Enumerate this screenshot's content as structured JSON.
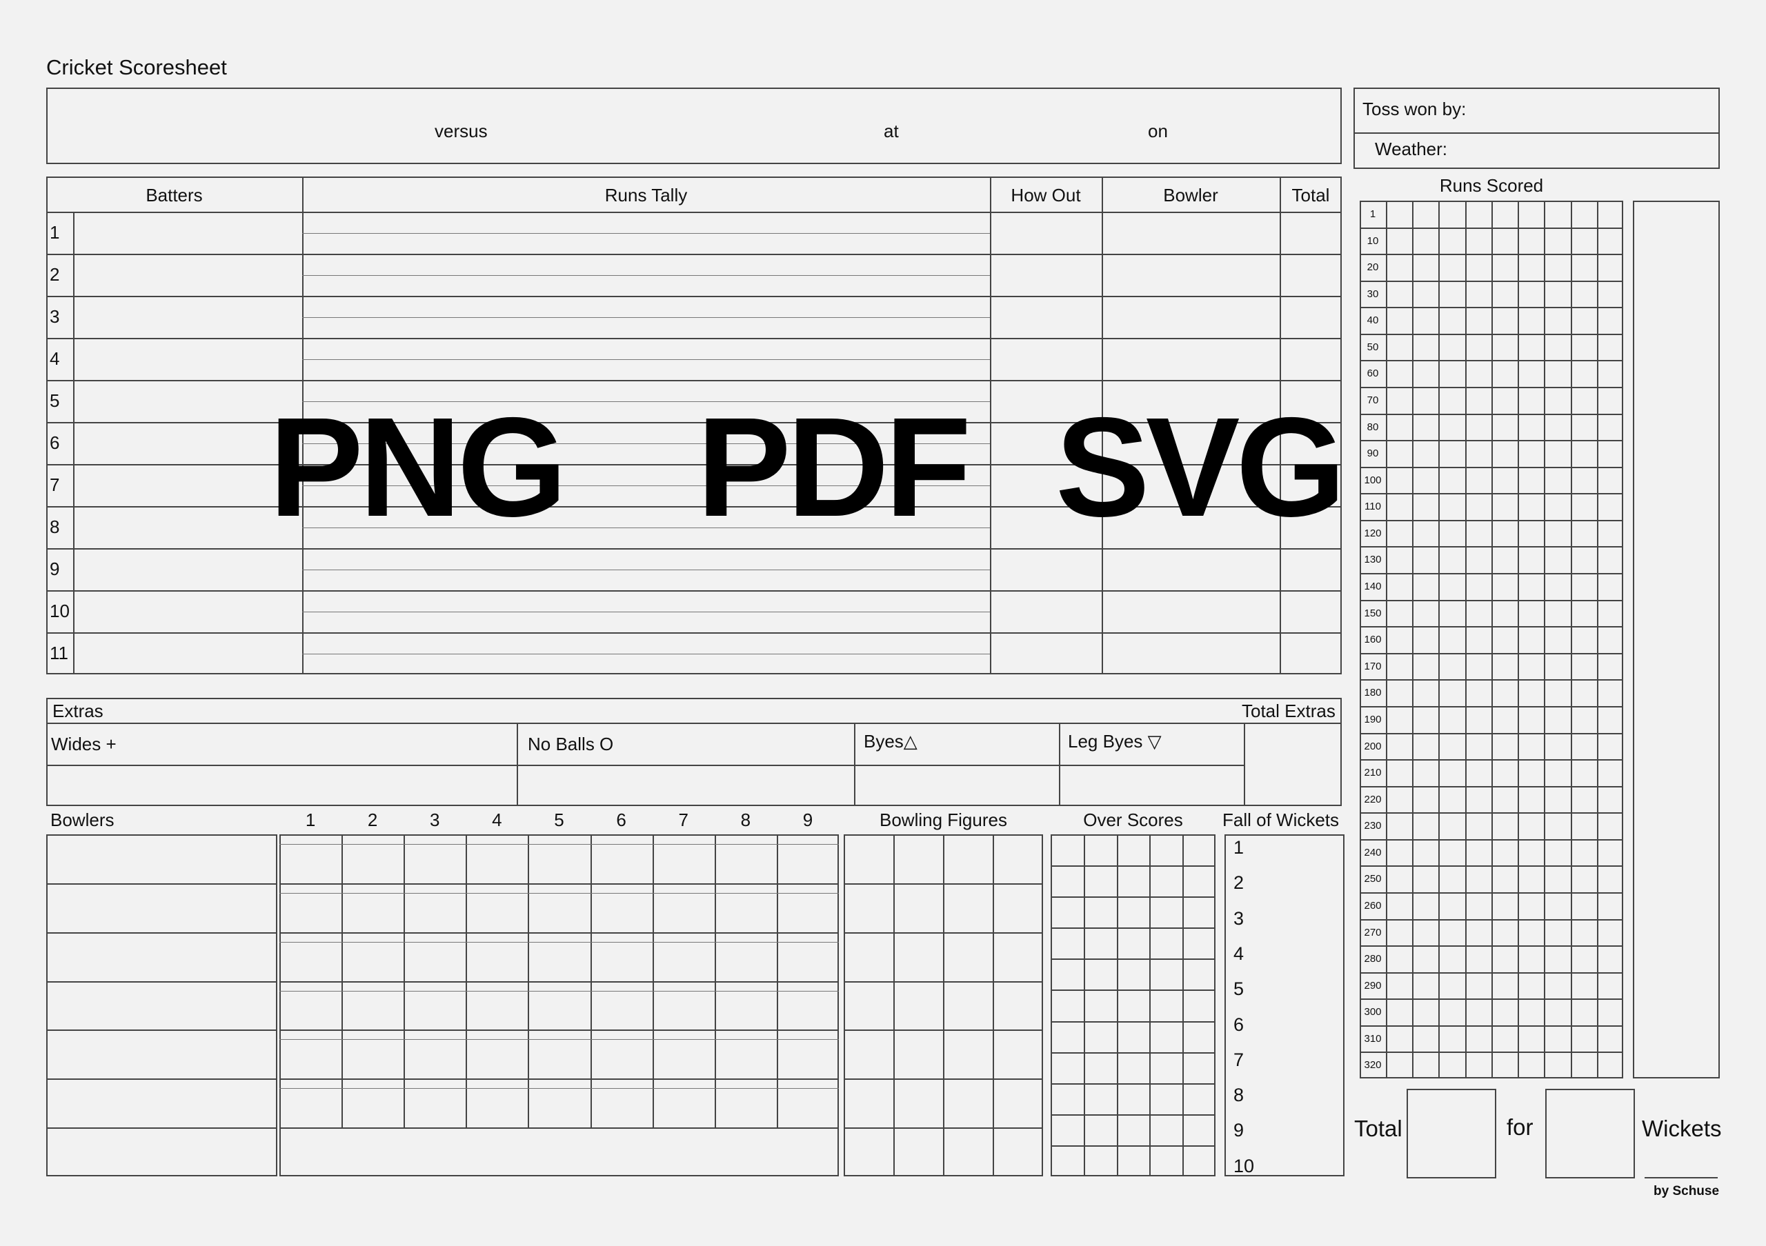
{
  "title": "Cricket Scoresheet",
  "header": {
    "versus": "versus",
    "at": "at",
    "on": "on"
  },
  "toss": {
    "toss_label": "Toss won by:",
    "weather_label": "Weather:"
  },
  "batting": {
    "columns": [
      "Batters",
      "Runs Tally",
      "How Out",
      "Bowler",
      "Total"
    ],
    "rows": [
      "1",
      "2",
      "3",
      "4",
      "5",
      "6",
      "7",
      "8",
      "9",
      "10",
      "11"
    ]
  },
  "extras": {
    "title": "Extras",
    "total_label": "Total Extras",
    "wides": "Wides +",
    "no_balls": "No Balls O",
    "byes": "Byes△",
    "leg_byes": "Leg Byes ▽"
  },
  "bowling": {
    "bowlers_label": "Bowlers",
    "overs": [
      "1",
      "2",
      "3",
      "4",
      "5",
      "6",
      "7",
      "8",
      "9"
    ],
    "figures_label": "Bowling Figures",
    "over_scores_label": "Over Scores",
    "fall_label": "Fall of Wickets",
    "fall_numbers": [
      "1",
      "2",
      "3",
      "4",
      "5",
      "6",
      "7",
      "8",
      "9",
      "10"
    ]
  },
  "runs_scored": {
    "title": "Runs Scored",
    "rows": [
      "1",
      "10",
      "20",
      "30",
      "40",
      "50",
      "60",
      "70",
      "80",
      "90",
      "100",
      "110",
      "120",
      "130",
      "140",
      "150",
      "160",
      "170",
      "180",
      "190",
      "200",
      "210",
      "220",
      "230",
      "240",
      "250",
      "260",
      "270",
      "280",
      "290",
      "300",
      "310",
      "320"
    ]
  },
  "footer": {
    "total": "Total",
    "for": "for",
    "wickets": "Wickets",
    "credit": "by Schuse"
  },
  "watermark": [
    "PNG",
    "PDF",
    "SVG"
  ]
}
